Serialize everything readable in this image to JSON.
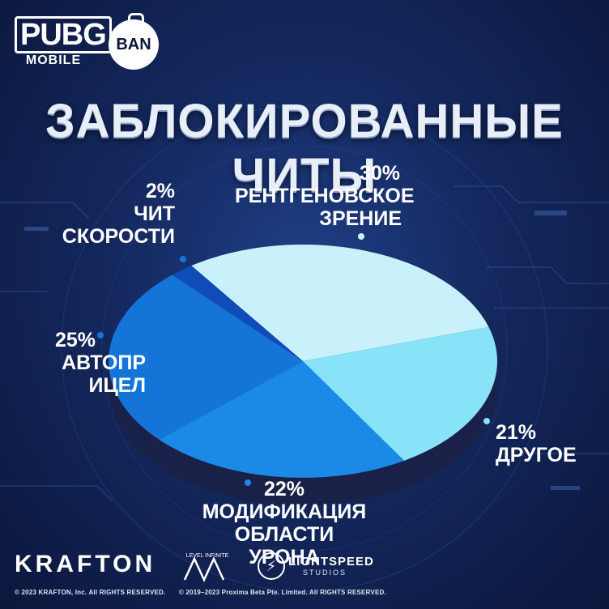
{
  "brand": {
    "pubg_word": "PUBG",
    "pubg_sub": "MOBILE",
    "ban_badge": "BAN",
    "krafton": "KRAFTON",
    "level_infinite": "LEVEL INFINITE",
    "lightspeed": "LIGHTSPEED",
    "lightspeed_sub": "STUDIOS"
  },
  "colors": {
    "xray": "#c9f1fb",
    "other": "#88e2f8",
    "damage": "#1a8ae6",
    "aimbot": "#1574d8",
    "speed": "#0f4cb8",
    "pie_shadow": "#1a2148"
  },
  "chart_data": {
    "type": "pie",
    "title": "ЗАБЛОКИРОВАННЫЕ ЧИТЫ",
    "slices": [
      {
        "pct_label": "30%",
        "name_lines": [
          "РЕНТГЕНОВСКОЕ",
          "ЗРЕНИЕ"
        ],
        "value": 30
      },
      {
        "pct_label": "21%",
        "name_lines": [
          "ДРУГОЕ"
        ],
        "value": 21
      },
      {
        "pct_label": "22%",
        "name_lines": [
          "МОДИФИКАЦИЯ",
          "ОБЛАСТИ УРОНА"
        ],
        "value": 22
      },
      {
        "pct_label": "25%",
        "name_lines": [
          "АВТОПР ИЦЕЛ"
        ],
        "value": 25
      },
      {
        "pct_label": "2%",
        "name_lines": [
          "ЧИТ",
          "СКОРОСТИ"
        ],
        "value": 2
      }
    ]
  },
  "footer": {
    "copyright_1": "© 2023 KRAFTON, Inc. All RIGHTS RESERVED.",
    "copyright_2": "© 2019–2023 Proxima Beta Pte. Limited. All RIGHTS RESERVED."
  }
}
